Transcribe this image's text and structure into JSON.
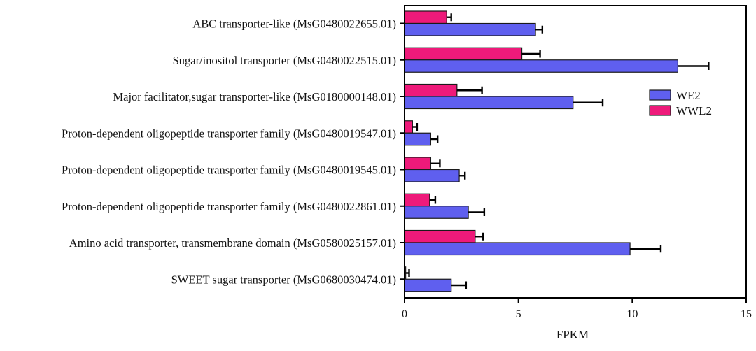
{
  "chart_data": {
    "type": "bar",
    "orientation": "horizontal",
    "title": "",
    "xlabel": "FPKM",
    "ylabel": "",
    "xlim": [
      0,
      15
    ],
    "xticks": [
      0,
      5,
      10,
      15
    ],
    "xtick_labels": [
      "0",
      "5",
      "10",
      "15"
    ],
    "categories": [
      "ABC transporter-like (MsG0480022655.01)",
      "Sugar/inositol transporter (MsG0480022515.01)",
      "Major facilitator,sugar transporter-like (MsG0180000148.01)",
      "Proton-dependent oligopeptide transporter family (MsG0480019547.01)",
      "Proton-dependent oligopeptide transporter family (MsG0480019545.01)",
      "Proton-dependent oligopeptide transporter family (MsG0480022861.01)",
      "Amino acid transporter, transmembrane domain (MsG0580025157.01)",
      "SWEET sugar transporter (MsG0680030474.01)"
    ],
    "series": [
      {
        "name": "WWL2",
        "color": "#ee1a7a",
        "values": [
          1.85,
          5.15,
          2.3,
          0.35,
          1.15,
          1.1,
          3.1,
          0.05
        ],
        "errors": [
          0.2,
          0.8,
          1.1,
          0.2,
          0.4,
          0.25,
          0.35,
          0.15
        ]
      },
      {
        "name": "WE2",
        "color": "#5f5fef",
        "values": [
          5.75,
          12.0,
          7.4,
          1.15,
          2.4,
          2.8,
          9.9,
          2.05
        ],
        "errors": [
          0.3,
          1.35,
          1.3,
          0.3,
          0.25,
          0.7,
          1.35,
          0.65
        ]
      }
    ],
    "legend": {
      "position": "right",
      "order": [
        "WE2",
        "WWL2"
      ]
    },
    "grid": false
  }
}
